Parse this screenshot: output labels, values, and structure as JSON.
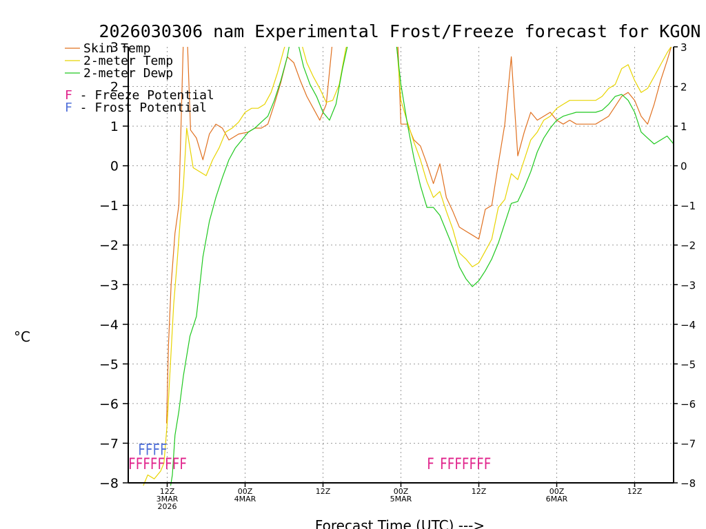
{
  "colors": {
    "skin_temp": "#e0701f",
    "air_temp": "#e8d400",
    "dewpoint": "#1ec81e",
    "freeze": "#e0208a",
    "frost": "#4f6fd8",
    "grid": "#9a9a9a"
  },
  "legend": {
    "skin_temp": "Skin Temp",
    "air_temp": "2-meter Temp",
    "dewpoint": "2-meter Dewp",
    "freeze": "F - Freeze Potential",
    "frost": "F - Frost Potential"
  },
  "chart_data": {
    "type": "line",
    "title": "2026030306 nam Experimental Frost/Freeze forecast for KGON",
    "xlabel": "Forecast Time (UTC) --->",
    "ylabel": "°C",
    "xlim": [
      0,
      84
    ],
    "ylim": [
      -8,
      3
    ],
    "yticks": [
      -8,
      -7,
      -6,
      -5,
      -4,
      -3,
      -2,
      -1,
      0,
      1,
      2,
      3
    ],
    "xticks": [
      {
        "x": 6,
        "lines": [
          "12Z",
          "3MAR",
          "2026"
        ]
      },
      {
        "x": 18,
        "lines": [
          "00Z",
          "4MAR"
        ]
      },
      {
        "x": 30,
        "lines": [
          "12Z"
        ]
      },
      {
        "x": 42,
        "lines": [
          "00Z",
          "5MAR"
        ]
      },
      {
        "x": 54,
        "lines": [
          "12Z"
        ]
      },
      {
        "x": 66,
        "lines": [
          "00Z",
          "6MAR"
        ]
      },
      {
        "x": 78,
        "lines": [
          "12Z"
        ]
      }
    ],
    "grid": true,
    "series": [
      {
        "name": "Skin Temp",
        "key": "skin_temp",
        "points": [
          [
            5.9,
            -6.5
          ],
          [
            6.2,
            -4.5
          ],
          [
            6.6,
            -3
          ],
          [
            7.2,
            -1.7
          ],
          [
            7.8,
            -1
          ],
          [
            8.5,
            3.2
          ],
          [
            9.1,
            3.2
          ],
          [
            9.6,
            0.9
          ],
          [
            10.5,
            0.7
          ],
          [
            11.5,
            0.15
          ],
          [
            12.5,
            0.8
          ],
          [
            13.5,
            1.05
          ],
          [
            14.5,
            0.95
          ],
          [
            15.5,
            0.65
          ],
          [
            17,
            0.8
          ],
          [
            18.5,
            0.85
          ],
          [
            19.5,
            0.95
          ],
          [
            20.5,
            0.95
          ],
          [
            21.5,
            1.05
          ],
          [
            22.5,
            1.55
          ],
          [
            23.5,
            2.1
          ],
          [
            24.5,
            2.75
          ],
          [
            25.5,
            2.6
          ],
          [
            26.5,
            2.15
          ],
          [
            27.5,
            1.75
          ],
          [
            28.5,
            1.45
          ],
          [
            29.5,
            1.15
          ],
          [
            30.5,
            1.55
          ],
          [
            31.5,
            3.2
          ],
          [
            41.5,
            3.2
          ],
          [
            42,
            1.05
          ],
          [
            43,
            1.05
          ],
          [
            44,
            0.65
          ],
          [
            45,
            0.5
          ],
          [
            46,
            0.05
          ],
          [
            47,
            -0.45
          ],
          [
            48,
            0.05
          ],
          [
            49,
            -0.8
          ],
          [
            50,
            -1.15
          ],
          [
            51,
            -1.55
          ],
          [
            52,
            -1.65
          ],
          [
            53,
            -1.75
          ],
          [
            54,
            -1.85
          ],
          [
            55,
            -1.1
          ],
          [
            56,
            -1
          ],
          [
            57,
            0.05
          ],
          [
            58,
            1.05
          ],
          [
            59,
            2.75
          ],
          [
            60,
            0.25
          ],
          [
            61,
            0.85
          ],
          [
            62,
            1.35
          ],
          [
            63,
            1.15
          ],
          [
            64,
            1.25
          ],
          [
            65,
            1.35
          ],
          [
            66,
            1.15
          ],
          [
            67,
            1.05
          ],
          [
            68,
            1.15
          ],
          [
            69,
            1.05
          ],
          [
            70,
            1.05
          ],
          [
            71,
            1.05
          ],
          [
            72,
            1.05
          ],
          [
            73,
            1.15
          ],
          [
            74,
            1.25
          ],
          [
            75,
            1.5
          ],
          [
            76,
            1.75
          ],
          [
            77,
            1.85
          ],
          [
            78,
            1.65
          ],
          [
            79,
            1.25
          ],
          [
            80,
            1.05
          ],
          [
            81,
            1.55
          ],
          [
            82,
            2.15
          ],
          [
            83,
            2.65
          ],
          [
            84,
            3.2
          ]
        ]
      },
      {
        "name": "2-meter Temp",
        "key": "air_temp",
        "points": [
          [
            2,
            -8.2
          ],
          [
            3,
            -7.8
          ],
          [
            4,
            -7.9
          ],
          [
            5,
            -7.7
          ],
          [
            5.5,
            -7.5
          ],
          [
            6,
            -6.5
          ],
          [
            6.5,
            -5
          ],
          [
            7,
            -3.5
          ],
          [
            7.5,
            -2.5
          ],
          [
            8,
            -1.4
          ],
          [
            8.5,
            -0.5
          ],
          [
            9,
            0.95
          ],
          [
            10,
            -0.05
          ],
          [
            11,
            -0.15
          ],
          [
            12,
            -0.25
          ],
          [
            13,
            0.15
          ],
          [
            14,
            0.45
          ],
          [
            15,
            0.85
          ],
          [
            16,
            0.95
          ],
          [
            17,
            1.1
          ],
          [
            18,
            1.35
          ],
          [
            19,
            1.45
          ],
          [
            20,
            1.45
          ],
          [
            21,
            1.55
          ],
          [
            22,
            1.85
          ],
          [
            23,
            2.35
          ],
          [
            24,
            2.95
          ],
          [
            24.5,
            3.2
          ],
          [
            26.5,
            3.2
          ],
          [
            27.5,
            2.6
          ],
          [
            28.5,
            2.25
          ],
          [
            29.5,
            1.95
          ],
          [
            30.5,
            1.6
          ],
          [
            31.5,
            1.65
          ],
          [
            32.5,
            2.05
          ],
          [
            33.5,
            2.95
          ],
          [
            34,
            3.2
          ],
          [
            41.3,
            3.2
          ],
          [
            42,
            1.65
          ],
          [
            43,
            1.1
          ],
          [
            44,
            0.6
          ],
          [
            45,
            0.15
          ],
          [
            46,
            -0.4
          ],
          [
            47,
            -0.8
          ],
          [
            48,
            -0.65
          ],
          [
            49,
            -1.15
          ],
          [
            50,
            -1.6
          ],
          [
            51,
            -2.2
          ],
          [
            52,
            -2.35
          ],
          [
            53,
            -2.55
          ],
          [
            54,
            -2.45
          ],
          [
            55,
            -2.15
          ],
          [
            56,
            -1.85
          ],
          [
            57,
            -1.05
          ],
          [
            58,
            -0.85
          ],
          [
            59,
            -0.2
          ],
          [
            60,
            -0.35
          ],
          [
            61,
            0.15
          ],
          [
            62,
            0.65
          ],
          [
            63,
            0.85
          ],
          [
            64,
            1.15
          ],
          [
            65,
            1.25
          ],
          [
            66,
            1.45
          ],
          [
            67,
            1.55
          ],
          [
            68,
            1.65
          ],
          [
            69,
            1.65
          ],
          [
            70,
            1.65
          ],
          [
            71,
            1.65
          ],
          [
            72,
            1.65
          ],
          [
            73,
            1.75
          ],
          [
            74,
            1.95
          ],
          [
            75,
            2.05
          ],
          [
            76,
            2.45
          ],
          [
            77,
            2.55
          ],
          [
            78,
            2.15
          ],
          [
            79,
            1.85
          ],
          [
            80,
            1.95
          ],
          [
            81,
            2.25
          ],
          [
            82,
            2.55
          ],
          [
            83,
            2.85
          ],
          [
            84,
            3.1
          ]
        ]
      },
      {
        "name": "2-meter Dewp",
        "key": "dewpoint",
        "points": [
          [
            6.4,
            -8.2
          ],
          [
            6.8,
            -7.8
          ],
          [
            7.2,
            -6.8
          ],
          [
            7.8,
            -6.2
          ],
          [
            8.5,
            -5.3
          ],
          [
            9.5,
            -4.3
          ],
          [
            10.5,
            -3.8
          ],
          [
            11.5,
            -2.3
          ],
          [
            12.5,
            -1.4
          ],
          [
            13.5,
            -0.8
          ],
          [
            14.5,
            -0.3
          ],
          [
            15.5,
            0.15
          ],
          [
            16.5,
            0.45
          ],
          [
            17.5,
            0.65
          ],
          [
            18.5,
            0.85
          ],
          [
            19.5,
            0.95
          ],
          [
            20.5,
            1.1
          ],
          [
            21.5,
            1.25
          ],
          [
            22.5,
            1.65
          ],
          [
            23.5,
            2.15
          ],
          [
            24.5,
            2.75
          ],
          [
            25,
            3.2
          ],
          [
            26,
            3.2
          ],
          [
            27,
            2.5
          ],
          [
            28,
            2.05
          ],
          [
            29,
            1.75
          ],
          [
            30,
            1.35
          ],
          [
            31,
            1.15
          ],
          [
            32,
            1.55
          ],
          [
            33,
            2.45
          ],
          [
            34,
            3.2
          ],
          [
            41.2,
            3.2
          ],
          [
            42,
            2.05
          ],
          [
            43,
            1.05
          ],
          [
            44,
            0.2
          ],
          [
            45,
            -0.5
          ],
          [
            46,
            -1.05
          ],
          [
            47,
            -1.05
          ],
          [
            48,
            -1.25
          ],
          [
            49,
            -1.65
          ],
          [
            50,
            -2.05
          ],
          [
            51,
            -2.55
          ],
          [
            52,
            -2.85
          ],
          [
            53,
            -3.05
          ],
          [
            54,
            -2.9
          ],
          [
            55,
            -2.65
          ],
          [
            56,
            -2.35
          ],
          [
            57,
            -1.95
          ],
          [
            58,
            -1.45
          ],
          [
            59,
            -0.95
          ],
          [
            60,
            -0.9
          ],
          [
            61,
            -0.55
          ],
          [
            62,
            -0.15
          ],
          [
            63,
            0.35
          ],
          [
            64,
            0.7
          ],
          [
            65,
            0.95
          ],
          [
            66,
            1.15
          ],
          [
            67,
            1.25
          ],
          [
            68,
            1.3
          ],
          [
            69,
            1.35
          ],
          [
            70,
            1.35
          ],
          [
            71,
            1.35
          ],
          [
            72,
            1.35
          ],
          [
            73,
            1.4
          ],
          [
            74,
            1.55
          ],
          [
            75,
            1.75
          ],
          [
            76,
            1.8
          ],
          [
            77,
            1.65
          ],
          [
            78,
            1.35
          ],
          [
            79,
            0.85
          ],
          [
            80,
            0.7
          ],
          [
            81,
            0.55
          ],
          [
            82,
            0.65
          ],
          [
            83,
            0.75
          ],
          [
            84,
            0.55
          ]
        ]
      }
    ],
    "freeze_marks": [
      {
        "x": 0,
        "text": "FFFFFFFF"
      },
      {
        "x": 46,
        "text": "F"
      },
      {
        "x": 48,
        "text": "FFFFFFF"
      }
    ],
    "frost_marks": [
      {
        "x": 1.5,
        "text": "FFFF"
      }
    ]
  }
}
